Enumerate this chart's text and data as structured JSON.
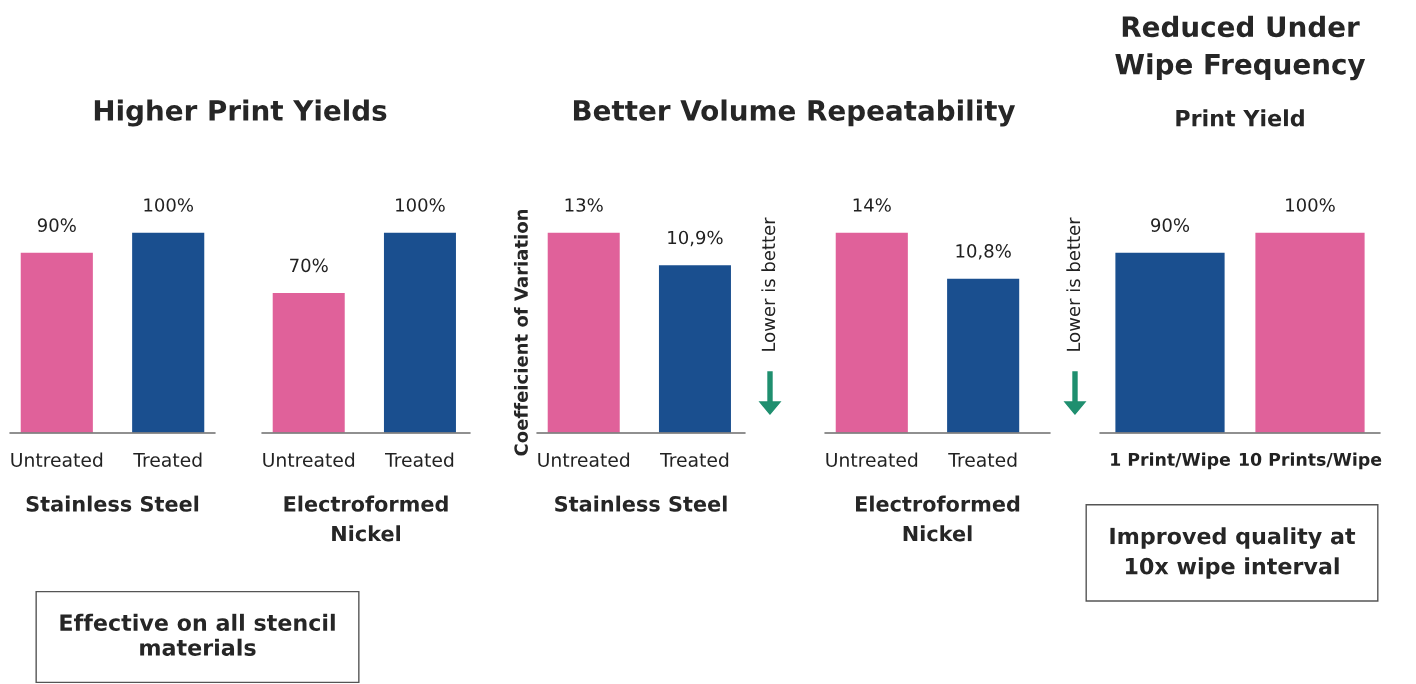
{
  "chart_data": [
    {
      "type": "bar",
      "title": "Higher Print Yields",
      "categories": [
        "Untreated",
        "Treated"
      ],
      "xlabel": "Stainless Steel",
      "values": [
        90,
        100
      ],
      "colors": [
        "#e0619a",
        "#1a4f8f"
      ],
      "value_labels": [
        "90%",
        "100%"
      ],
      "annotations": [
        "Effective on all stencil materials"
      ]
    },
    {
      "type": "bar",
      "categories": [
        "Untreated",
        "Treated"
      ],
      "xlabel": "Electroformed Nickel",
      "values": [
        70,
        100
      ],
      "colors": [
        "#e0619a",
        "#1a4f8f"
      ],
      "value_labels": [
        "70%",
        "100%"
      ]
    },
    {
      "type": "bar",
      "title": "Better Volume Repeatability",
      "ylabel": "Coeffeicient of Variation",
      "categories": [
        "Untreated",
        "Treated"
      ],
      "xlabel": "Stainless Steel",
      "values": [
        13,
        10.9
      ],
      "colors": [
        "#e0619a",
        "#1a4f8f"
      ],
      "value_labels": [
        "13%",
        "10,9%"
      ],
      "annotations": [
        "Lower is better"
      ]
    },
    {
      "type": "bar",
      "categories": [
        "Untreated",
        "Treated"
      ],
      "xlabel": "Electroformed Nickel",
      "values": [
        14,
        10.8
      ],
      "colors": [
        "#e0619a",
        "#1a4f8f"
      ],
      "value_labels": [
        "14%",
        "10,8%"
      ],
      "annotations": [
        "Lower is better"
      ]
    },
    {
      "type": "bar",
      "title": "Reduced Under Wipe Frequency",
      "subtitle": "Print Yield",
      "categories": [
        "1 Print/Wipe",
        "10 Prints/Wipe"
      ],
      "values": [
        90,
        100
      ],
      "colors": [
        "#1a4f8f",
        "#e0619a"
      ],
      "value_labels": [
        "90%",
        "100%"
      ],
      "annotations": [
        "Improved quality at 10x wipe interval"
      ]
    }
  ]
}
